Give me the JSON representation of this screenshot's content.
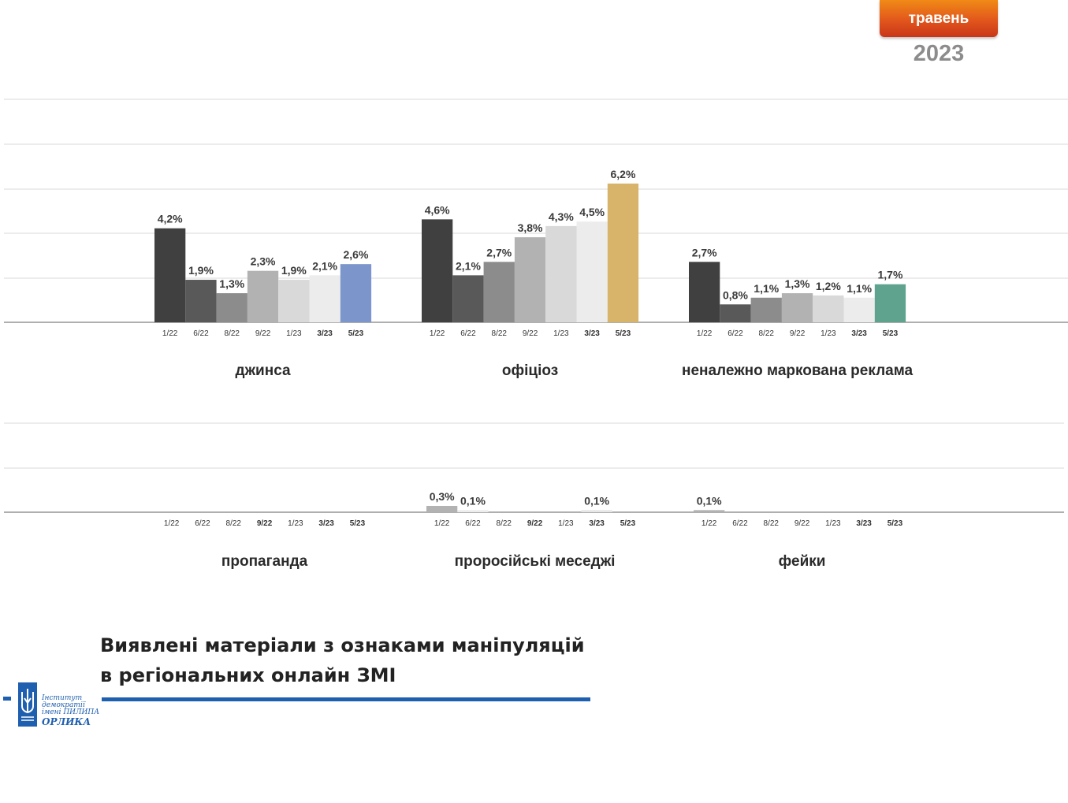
{
  "header": {
    "month_badge": "травень",
    "year": "2023"
  },
  "colors": {
    "gridline": "#d9d9d9",
    "axis": "#7f7f7f",
    "bars": [
      "#404040",
      "#595959",
      "#8c8c8c",
      "#b2b2b2",
      "#d9d9d9",
      "#ececec"
    ],
    "accent": {
      "джинса": "#7c96cc",
      "офіціоз": "#d7b46a",
      "неналежно маркована реклама": "#5fa38e"
    },
    "brand_blue": "#1f5fb0"
  },
  "chart_data": [
    {
      "type": "bar",
      "title": "джинса",
      "categories": [
        "1/22",
        "6/22",
        "8/22",
        "9/22",
        "1/23",
        "3/23",
        "5/23"
      ],
      "bold_ticks": [
        "3/23",
        "5/23"
      ],
      "values": [
        4.2,
        1.9,
        1.3,
        2.3,
        1.9,
        2.1,
        2.6
      ],
      "labels": [
        "4,2%",
        "1,9%",
        "1,3%",
        "2,3%",
        "1,9%",
        "2,1%",
        "2,6%"
      ],
      "ylim": [
        0,
        10
      ],
      "grid": true
    },
    {
      "type": "bar",
      "title": "офіціоз",
      "categories": [
        "1/22",
        "6/22",
        "8/22",
        "9/22",
        "1/23",
        "3/23",
        "5/23"
      ],
      "bold_ticks": [
        "3/23",
        "5/23"
      ],
      "values": [
        4.6,
        2.1,
        2.7,
        3.8,
        4.3,
        4.5,
        6.2
      ],
      "labels": [
        "4,6%",
        "2,1%",
        "2,7%",
        "3,8%",
        "4,3%",
        "4,5%",
        "6,2%"
      ],
      "ylim": [
        0,
        10
      ],
      "grid": true
    },
    {
      "type": "bar",
      "title": "неналежно маркована реклама",
      "categories": [
        "1/22",
        "6/22",
        "8/22",
        "9/22",
        "1/23",
        "3/23",
        "5/23"
      ],
      "bold_ticks": [
        "3/23",
        "5/23"
      ],
      "values": [
        2.7,
        0.8,
        1.1,
        1.3,
        1.2,
        1.1,
        1.7
      ],
      "labels": [
        "2,7%",
        "0,8%",
        "1,1%",
        "1,3%",
        "1,2%",
        "1,1%",
        "1,7%"
      ],
      "ylim": [
        0,
        10
      ],
      "grid": true
    },
    {
      "type": "bar",
      "title": "пропаганда",
      "categories": [
        "1/22",
        "6/22",
        "8/22",
        "9/22",
        "1/23",
        "3/23",
        "5/23"
      ],
      "bold_ticks": [
        "9/22",
        "3/23",
        "5/23"
      ],
      "values": [
        0,
        0,
        0,
        0,
        0,
        0,
        0
      ],
      "labels": [
        "",
        "",
        "",
        "",
        "",
        "",
        ""
      ],
      "ylim": [
        0,
        1
      ],
      "grid": true
    },
    {
      "type": "bar",
      "title": "проросійські меседжі",
      "categories": [
        "1/22",
        "6/22",
        "8/22",
        "9/22",
        "1/23",
        "3/23",
        "5/23"
      ],
      "bold_ticks": [
        "9/22",
        "3/23",
        "5/23"
      ],
      "values": [
        0.3,
        0.1,
        0,
        0,
        0,
        0.1,
        0
      ],
      "labels": [
        "0,3%",
        "0,1%",
        "",
        "",
        "",
        "0,1%",
        ""
      ],
      "ylim": [
        0,
        1
      ],
      "grid": true
    },
    {
      "type": "bar",
      "title": "фейки",
      "categories": [
        "1/22",
        "6/22",
        "8/22",
        "9/22",
        "1/23",
        "3/23",
        "5/23"
      ],
      "bold_ticks": [
        "3/23",
        "5/23"
      ],
      "values": [
        0.1,
        0,
        0,
        0,
        0,
        0,
        0
      ],
      "labels": [
        "0,1%",
        "",
        "",
        "",
        "",
        "",
        ""
      ],
      "ylim": [
        0,
        1
      ],
      "grid": true
    }
  ],
  "footer": {
    "title_line1": "Виявлені матеріали з ознаками маніпуляцій",
    "title_line2": "в регіональних онлайн ЗМІ",
    "logo_line1": "Інститут демократії",
    "logo_line2": "імені ПИЛИПА",
    "logo_line3": "ОРЛИКА"
  }
}
